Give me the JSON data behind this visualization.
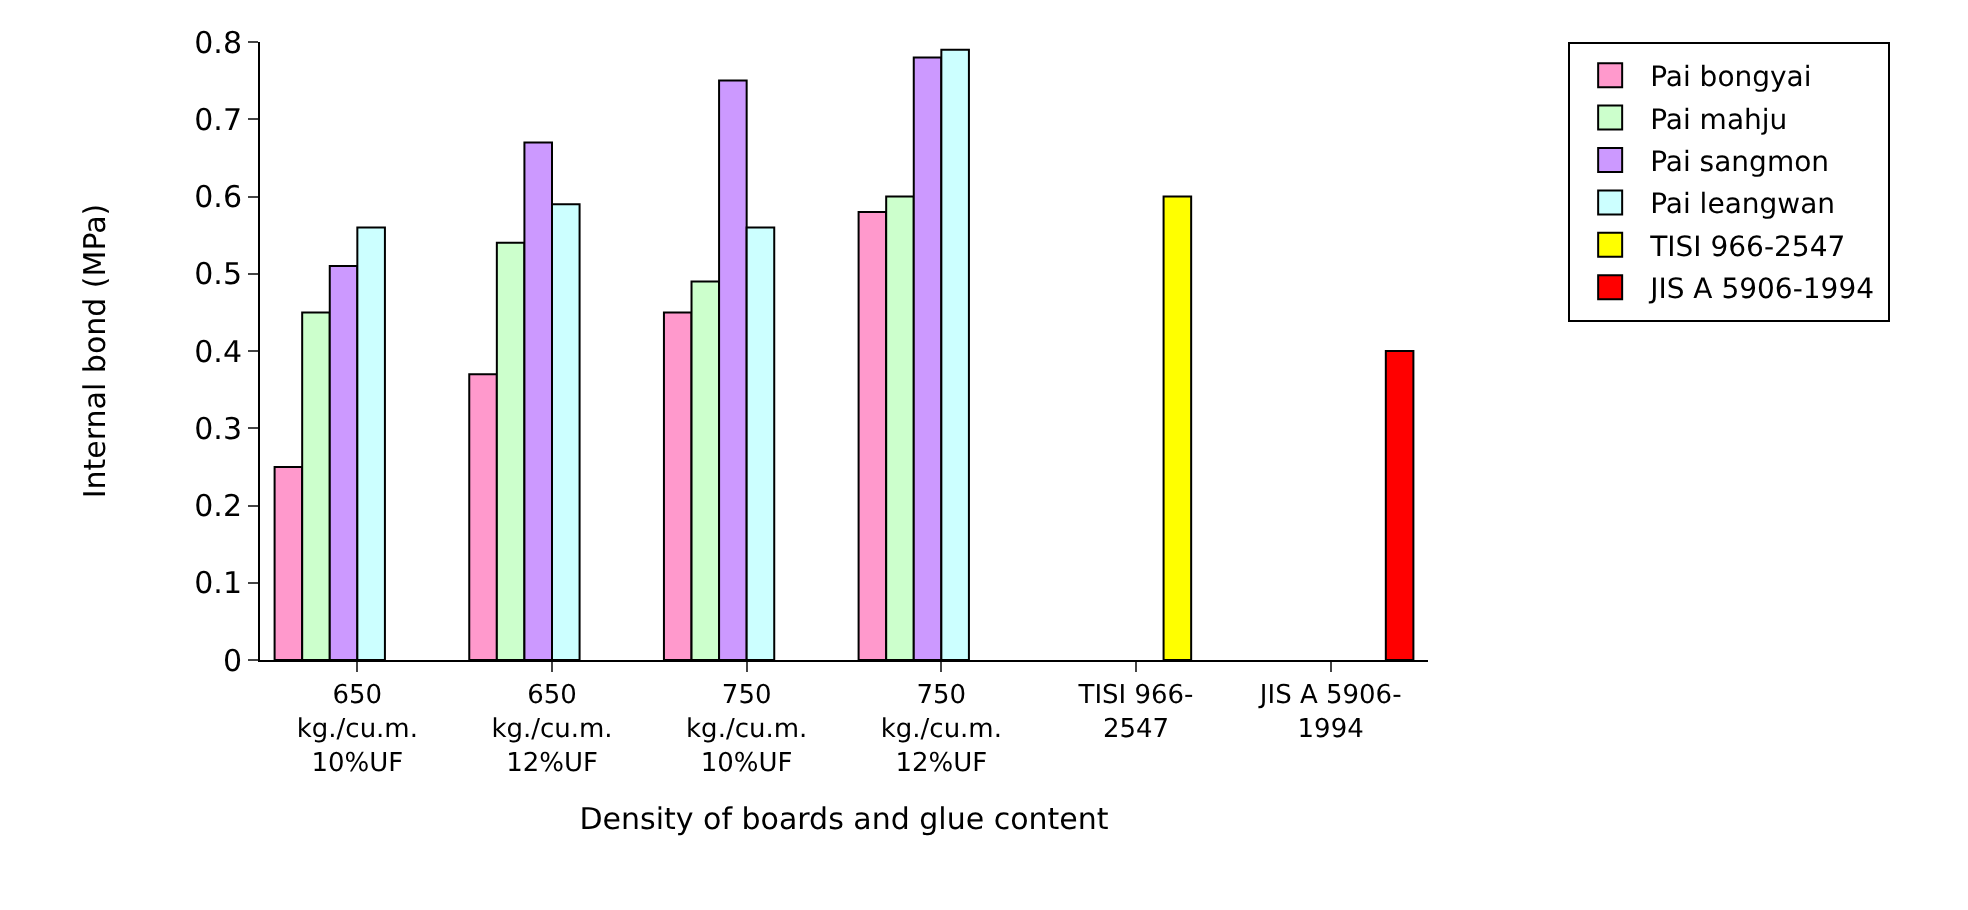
{
  "chart_data": {
    "type": "bar",
    "xlabel": "Density of boards and glue content",
    "ylabel": "Internal bond (MPa)",
    "categories": [
      "650\nkg./cu.m.\n10%UF",
      "650\nkg./cu.m.\n12%UF",
      "750\nkg./cu.m.\n10%UF",
      "750\nkg./cu.m.\n12%UF",
      "TISI 966-\n2547",
      "JIS A 5906-\n1994"
    ],
    "series": [
      {
        "name": "Pai bongyai",
        "color": "#ff99cc",
        "values": [
          0.25,
          0.37,
          0.45,
          0.58,
          null,
          null
        ]
      },
      {
        "name": "Pai mahju",
        "color": "#ccffcc",
        "values": [
          0.45,
          0.54,
          0.49,
          0.6,
          null,
          null
        ]
      },
      {
        "name": "Pai sangmon",
        "color": "#cc99ff",
        "values": [
          0.51,
          0.67,
          0.75,
          0.78,
          null,
          null
        ]
      },
      {
        "name": "Pai leangwan",
        "color": "#ccffff",
        "values": [
          0.56,
          0.59,
          0.56,
          0.79,
          null,
          null
        ]
      },
      {
        "name": "TISI 966-2547",
        "color": "#ffff00",
        "values": [
          null,
          null,
          null,
          null,
          0.6,
          null
        ]
      },
      {
        "name": "JIS A 5906-1994",
        "color": "#ff0000",
        "values": [
          null,
          null,
          null,
          null,
          null,
          0.4
        ]
      }
    ],
    "ylim": [
      0,
      0.8
    ],
    "yticks": [
      {
        "value": 0,
        "label": "0"
      },
      0.1,
      0.2,
      0.3,
      0.4,
      0.5,
      0.6,
      0.7,
      0.8
    ],
    "legend": "right"
  }
}
